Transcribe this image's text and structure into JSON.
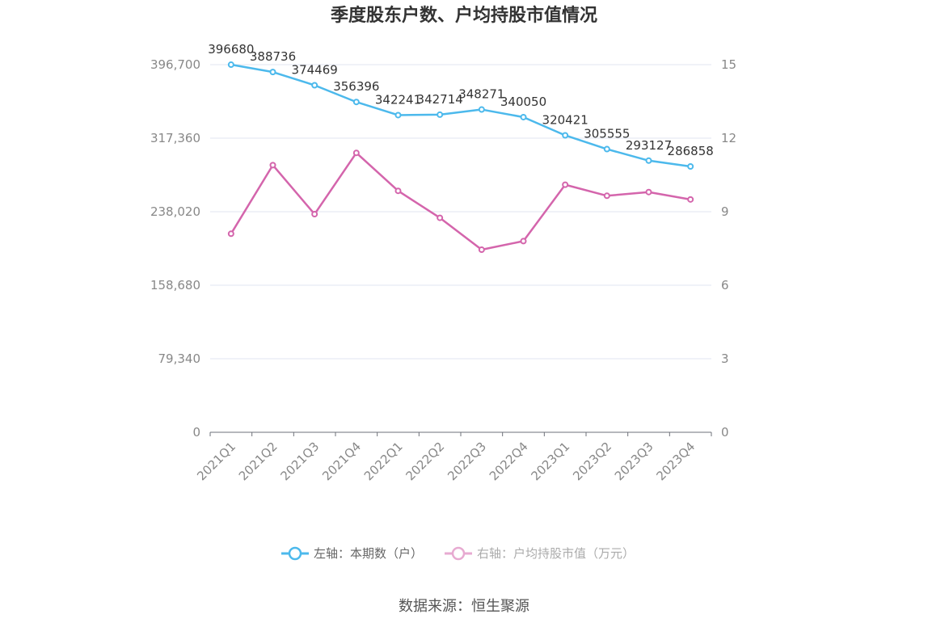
{
  "chart_data": {
    "type": "line",
    "title": "季度股东户数、户均持股市值情况",
    "categories": [
      "2021Q1",
      "2021Q2",
      "2021Q3",
      "2021Q4",
      "2022Q1",
      "2022Q2",
      "2022Q3",
      "2022Q4",
      "2023Q1",
      "2023Q2",
      "2023Q3",
      "2023Q4"
    ],
    "left_axis": {
      "ylim": [
        0,
        396700
      ],
      "ticks": [
        "0",
        "79,340",
        "158,680",
        "238,020",
        "317,360",
        "396,700"
      ]
    },
    "right_axis": {
      "ylim": [
        0,
        15
      ],
      "ticks": [
        "0",
        "3",
        "6",
        "9",
        "12",
        "15"
      ]
    },
    "series": [
      {
        "name": "左轴：本期数（户）",
        "axis": "left",
        "color": "#4cb9ec",
        "values": [
          396680,
          388736,
          374469,
          356396,
          342241,
          342714,
          348271,
          340050,
          320421,
          305555,
          293127,
          286858
        ],
        "labels": [
          "396680",
          "388736",
          "374469",
          "356396",
          "342241",
          "342714",
          "348271",
          "340050",
          "320421",
          "305555",
          "293127",
          "286858"
        ]
      },
      {
        "name": "右轴：户均持股市值（万元）",
        "axis": "right",
        "color": "#d465ac",
        "values": [
          8.1,
          10.9,
          8.9,
          11.4,
          9.85,
          8.75,
          7.45,
          7.8,
          10.1,
          9.65,
          9.8,
          9.5
        ]
      }
    ],
    "grid": true,
    "legend_position": "bottom"
  },
  "footer": {
    "source": "数据来源：恒生聚源"
  }
}
